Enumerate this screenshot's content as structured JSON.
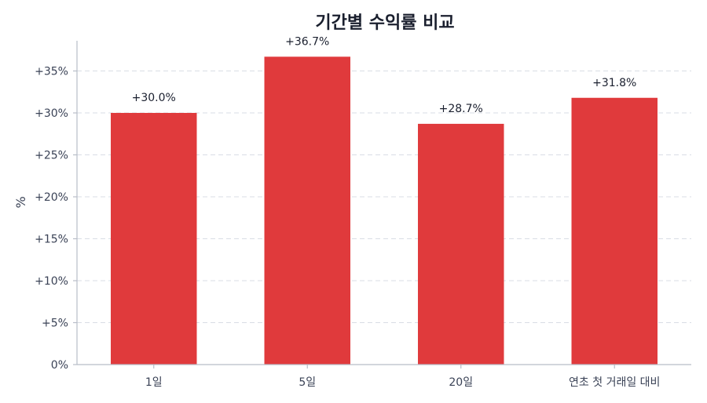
{
  "chart_data": {
    "type": "bar",
    "title": "기간별 수익률 비교",
    "xlabel": "",
    "ylabel": "%",
    "categories": [
      "1일",
      "5일",
      "20일",
      "연초 첫 거래일 대비"
    ],
    "values": [
      30.0,
      36.7,
      28.7,
      31.8
    ],
    "data_labels": [
      "+30.0%",
      "+36.7%",
      "+28.7%",
      "+31.8%"
    ],
    "ylim": [
      0,
      38.6
    ],
    "yticks": [
      0,
      5,
      10,
      15,
      20,
      25,
      30,
      35
    ],
    "ytick_labels": [
      "0%",
      "+5%",
      "+10%",
      "+15%",
      "+20%",
      "+25%",
      "+30%",
      "+35%"
    ],
    "grid": true,
    "legend": "none",
    "bar_color": "#e03a3c"
  }
}
